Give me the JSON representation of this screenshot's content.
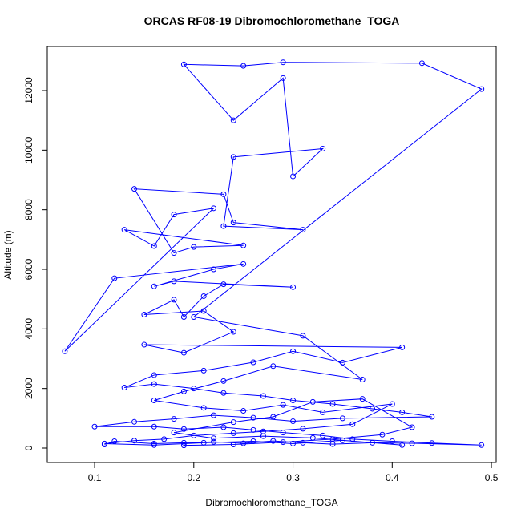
{
  "chart_data": {
    "type": "line",
    "title": "ORCAS RF08-19 Dibromochloromethane_TOGA",
    "x_label": "Dibromochloromethane_TOGA",
    "y_label": "Altitude (m)",
    "color": "#0000ff",
    "xlim": [
      0.0523,
      0.5048
    ],
    "ylim": [
      -484,
      13480
    ],
    "xticks": [
      0.1,
      0.2,
      0.3,
      0.4,
      0.5
    ],
    "yticks": [
      0,
      2000,
      4000,
      6000,
      8000,
      10000,
      12000
    ],
    "x": [
      0.11,
      0.12,
      0.16,
      0.19,
      0.22,
      0.25,
      0.28,
      0.31,
      0.34,
      0.38,
      0.42,
      0.49,
      0.44,
      0.4,
      0.36,
      0.33,
      0.29,
      0.26,
      0.23,
      0.19,
      0.16,
      0.1,
      0.14,
      0.18,
      0.22,
      0.26,
      0.3,
      0.35,
      0.44,
      0.41,
      0.38,
      0.34,
      0.3,
      0.27,
      0.23,
      0.2,
      0.16,
      0.13,
      0.16,
      0.21,
      0.26,
      0.3,
      0.35,
      0.41,
      0.15,
      0.19,
      0.24,
      0.21,
      0.15,
      0.18,
      0.19,
      0.21,
      0.23,
      0.3,
      0.18,
      0.16,
      0.22,
      0.25,
      0.12,
      0.07,
      0.22,
      0.18,
      0.16,
      0.13,
      0.25,
      0.2,
      0.18,
      0.14,
      0.23,
      0.24,
      0.31,
      0.23,
      0.24,
      0.33,
      0.3,
      0.29,
      0.24,
      0.19,
      0.25,
      0.29,
      0.43,
      0.49,
      0.2,
      0.31,
      0.37,
      0.28,
      0.23,
      0.19,
      0.16,
      0.21,
      0.25,
      0.29,
      0.33,
      0.4,
      0.36,
      0.31,
      0.27,
      0.24,
      0.2,
      0.17,
      0.14,
      0.11,
      0.16,
      0.21,
      0.26,
      0.3,
      0.35,
      0.41,
      0.32,
      0.27,
      0.22,
      0.18,
      0.24,
      0.28,
      0.32,
      0.37,
      0.42,
      0.39,
      0.34,
      0.29,
      0.24,
      0.19
    ],
    "values": [
      120,
      230,
      150,
      180,
      210,
      160,
      240,
      180,
      130,
      180,
      160,
      100,
      170,
      230,
      300,
      420,
      520,
      610,
      700,
      640,
      720,
      720,
      880,
      980,
      1100,
      1020,
      900,
      1000,
      1050,
      1200,
      1320,
      1480,
      1600,
      1750,
      1850,
      2000,
      2150,
      2030,
      2450,
      2600,
      2880,
      3250,
      2870,
      3380,
      3470,
      3200,
      3900,
      4600,
      4480,
      4980,
      4400,
      5100,
      5500,
      5400,
      5600,
      5430,
      6000,
      6180,
      5700,
      3250,
      8050,
      7840,
      6780,
      7330,
      6800,
      6750,
      6550,
      8700,
      8520,
      7570,
      7330,
      7450,
      9770,
      10050,
      9120,
      12420,
      11000,
      12880,
      12830,
      12950,
      12920,
      12050,
      4400,
      3770,
      2300,
      2750,
      2250,
      1900,
      1600,
      1350,
      1250,
      1450,
      1200,
      1480,
      800,
      650,
      560,
      500,
      420,
      300,
      250,
      150,
      100,
      180,
      230,
      150,
      260,
      100,
      340,
      400,
      330,
      520,
      870,
      1050,
      1550,
      1650,
      700,
      450,
      300,
      200,
      120,
      90
    ]
  }
}
